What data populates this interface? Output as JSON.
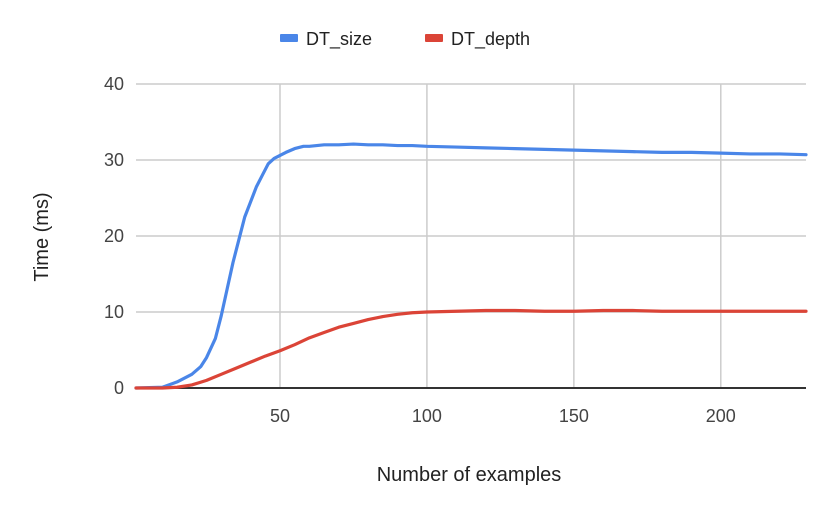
{
  "chart_data": {
    "type": "line",
    "title": "",
    "xlabel": "Number of examples",
    "ylabel": "Time (ms)",
    "xlim": [
      1,
      229
    ],
    "ylim": [
      0,
      40
    ],
    "x_ticks": [
      50,
      100,
      150,
      200
    ],
    "y_ticks": [
      0,
      10,
      20,
      30,
      40
    ],
    "x_tick_labels": [
      "50",
      "100",
      "150",
      "200"
    ],
    "y_tick_labels": [
      "0",
      "10",
      "20",
      "30",
      "40"
    ],
    "grid": true,
    "legend_position": "top",
    "series": [
      {
        "name": "DT_size",
        "color": "#4a86e8",
        "points": [
          [
            1,
            0
          ],
          [
            10,
            0.1
          ],
          [
            15,
            0.8
          ],
          [
            20,
            1.8
          ],
          [
            23,
            2.8
          ],
          [
            25,
            4.0
          ],
          [
            28,
            6.5
          ],
          [
            30,
            9.5
          ],
          [
            32,
            13.0
          ],
          [
            34,
            16.5
          ],
          [
            36,
            19.5
          ],
          [
            38,
            22.5
          ],
          [
            40,
            24.5
          ],
          [
            42,
            26.5
          ],
          [
            44,
            28.0
          ],
          [
            46,
            29.5
          ],
          [
            48,
            30.2
          ],
          [
            50,
            30.6
          ],
          [
            52,
            31.0
          ],
          [
            55,
            31.5
          ],
          [
            58,
            31.8
          ],
          [
            60,
            31.8
          ],
          [
            65,
            32.0
          ],
          [
            70,
            32.0
          ],
          [
            75,
            32.1
          ],
          [
            80,
            32.0
          ],
          [
            85,
            32.0
          ],
          [
            90,
            31.9
          ],
          [
            95,
            31.9
          ],
          [
            100,
            31.8
          ],
          [
            110,
            31.7
          ],
          [
            120,
            31.6
          ],
          [
            130,
            31.5
          ],
          [
            140,
            31.4
          ],
          [
            150,
            31.3
          ],
          [
            160,
            31.2
          ],
          [
            170,
            31.1
          ],
          [
            180,
            31.0
          ],
          [
            190,
            31.0
          ],
          [
            200,
            30.9
          ],
          [
            210,
            30.8
          ],
          [
            220,
            30.8
          ],
          [
            229,
            30.7
          ]
        ]
      },
      {
        "name": "DT_depth",
        "color": "#db4437",
        "points": [
          [
            1,
            0
          ],
          [
            10,
            0
          ],
          [
            15,
            0.1
          ],
          [
            20,
            0.4
          ],
          [
            25,
            1.0
          ],
          [
            30,
            1.8
          ],
          [
            35,
            2.6
          ],
          [
            40,
            3.4
          ],
          [
            45,
            4.2
          ],
          [
            50,
            4.9
          ],
          [
            55,
            5.7
          ],
          [
            60,
            6.6
          ],
          [
            65,
            7.3
          ],
          [
            70,
            8.0
          ],
          [
            75,
            8.5
          ],
          [
            80,
            9.0
          ],
          [
            85,
            9.4
          ],
          [
            90,
            9.7
          ],
          [
            95,
            9.9
          ],
          [
            100,
            10.0
          ],
          [
            110,
            10.1
          ],
          [
            120,
            10.2
          ],
          [
            130,
            10.2
          ],
          [
            140,
            10.1
          ],
          [
            150,
            10.1
          ],
          [
            160,
            10.2
          ],
          [
            170,
            10.2
          ],
          [
            180,
            10.1
          ],
          [
            190,
            10.1
          ],
          [
            200,
            10.1
          ],
          [
            210,
            10.1
          ],
          [
            220,
            10.1
          ],
          [
            229,
            10.1
          ]
        ]
      }
    ]
  }
}
